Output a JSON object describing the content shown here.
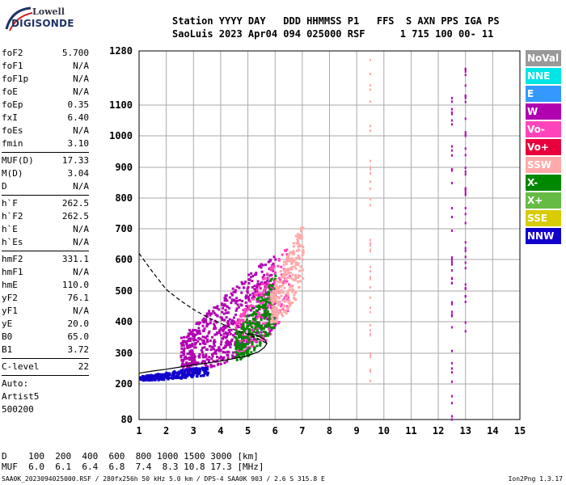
{
  "logo": {
    "line1": "Lowell",
    "line2": "DIGISONDE"
  },
  "header": {
    "line1": "Station YYYY DAY   DDD HHMMSS P1   FFS  S AXN PPS IGA PS",
    "line2": "SaoLuis 2023 Apr04 094 025000 RSF      1 715 100 00- 11"
  },
  "params": [
    {
      "k": "foF2",
      "v": "5.700"
    },
    {
      "k": "foF1",
      "v": "N/A"
    },
    {
      "k": "foF1p",
      "v": "N/A"
    },
    {
      "k": "foE",
      "v": "N/A"
    },
    {
      "k": "foEp",
      "v": "0.35"
    },
    {
      "k": "fxI",
      "v": "6.40"
    },
    {
      "k": "foEs",
      "v": "N/A"
    },
    {
      "k": "fmin",
      "v": "3.10"
    },
    {
      "sep": true
    },
    {
      "k": "MUF(D)",
      "v": "17.33"
    },
    {
      "k": "M(D)",
      "v": "3.04"
    },
    {
      "k": "D",
      "v": "N/A"
    },
    {
      "sep": true
    },
    {
      "k": "h`F",
      "v": "262.5"
    },
    {
      "k": "h`F2",
      "v": "262.5"
    },
    {
      "k": "h`E",
      "v": "N/A"
    },
    {
      "k": "h`Es",
      "v": "N/A"
    },
    {
      "sep": true
    },
    {
      "k": "hmF2",
      "v": "331.1"
    },
    {
      "k": "hmF1",
      "v": "N/A"
    },
    {
      "k": "hmE",
      "v": "110.0"
    },
    {
      "k": "yF2",
      "v": "76.1"
    },
    {
      "k": "yF1",
      "v": "N/A"
    },
    {
      "k": "yE",
      "v": "20.0"
    },
    {
      "k": "B0",
      "v": "65.0"
    },
    {
      "k": "B1",
      "v": "3.72"
    },
    {
      "sep": true
    },
    {
      "k": "C-level",
      "v": "22"
    },
    {
      "sep": true
    },
    {
      "text": "Auto:"
    },
    {
      "text": "Artist5"
    },
    {
      "text": "500200"
    }
  ],
  "legend": [
    {
      "label": "NoVal",
      "color": "#999999"
    },
    {
      "label": "NNE",
      "color": "#00e6e6"
    },
    {
      "label": "E",
      "color": "#3399ff"
    },
    {
      "label": "W",
      "color": "#b000b0"
    },
    {
      "label": "Vo-",
      "color": "#ff44bb"
    },
    {
      "label": "Vo+",
      "color": "#e8003c"
    },
    {
      "label": "SSW",
      "color": "#ffaaaa"
    },
    {
      "label": "X-",
      "color": "#008800"
    },
    {
      "label": "X+",
      "color": "#66bb44"
    },
    {
      "label": "SSE",
      "color": "#d8cc00"
    },
    {
      "label": "NNW",
      "color": "#1100cc"
    }
  ],
  "freq_table": {
    "line1": "D    100  200  400  600  800 1000 1500 3000 [km]",
    "line2": "MUF  6.0  6.1  6.4  6.8  7.4  8.3 10.8 17.3 [MHz]"
  },
  "footer": "SAA0K_2023094025000.RSF / 280fx256h 50 kHz 5.0 km / DPS-4 SAA0K 903 / 2.6 S 315.8 E",
  "version": "Ion2Png 1.3.17",
  "chart_data": {
    "type": "scatter",
    "title": "",
    "xlabel": "",
    "ylabel": "",
    "xlim": [
      1,
      15
    ],
    "ylim": [
      80,
      1280
    ],
    "xticks": [
      1,
      2,
      3,
      4,
      5,
      6,
      7,
      8,
      9,
      10,
      11,
      12,
      13,
      14,
      15
    ],
    "yticks": [
      80,
      200,
      300,
      400,
      500,
      600,
      700,
      800,
      900,
      1000,
      1100,
      1280
    ],
    "grid": true,
    "trace_o": {
      "description": "extracted O-mode trace (solid)",
      "x": [
        1.0,
        1.5,
        2.0,
        2.5,
        3.0,
        3.5,
        4.0,
        4.5,
        5.0,
        5.4,
        5.6,
        5.7,
        5.6,
        5.3,
        5.0
      ],
      "y": [
        235,
        242,
        248,
        255,
        262,
        268,
        275,
        283,
        292,
        305,
        318,
        331,
        345,
        358,
        362
      ]
    },
    "profile_n": {
      "description": "electron density profile (dashed)",
      "x": [
        1.0,
        1.5,
        2.0,
        2.5,
        3.0,
        3.5,
        4.0,
        4.5,
        5.0,
        5.4,
        5.7
      ],
      "y": [
        620,
        560,
        505,
        470,
        440,
        415,
        395,
        375,
        360,
        345,
        331
      ]
    },
    "echo_regions": [
      {
        "mode": "W",
        "color": "#b000b0",
        "x": [
          2.5,
          6.0
        ],
        "y": [
          240,
          620
        ]
      },
      {
        "mode": "NNW",
        "color": "#1100cc",
        "x": [
          1.0,
          3.5
        ],
        "y": [
          215,
          260
        ]
      },
      {
        "mode": "Vo-",
        "color": "#ff44bb",
        "x": [
          4.5,
          6.5
        ],
        "y": [
          300,
          650
        ]
      },
      {
        "mode": "X-",
        "color": "#008800",
        "x": [
          4.5,
          6.0
        ],
        "y": [
          280,
          560
        ]
      },
      {
        "mode": "SSW",
        "color": "#ffaaaa",
        "x": [
          5.8,
          7.0
        ],
        "y": [
          400,
          720
        ]
      }
    ],
    "vertical_lines": [
      {
        "x": 9.5,
        "y": [
          200,
          1280
        ],
        "color": "#ffaaaa"
      },
      {
        "x": 12.5,
        "y": [
          80,
          1130
        ],
        "color": "#b000b0"
      },
      {
        "x": 13.0,
        "y": [
          320,
          1230
        ],
        "color": "#b000b0"
      }
    ]
  }
}
